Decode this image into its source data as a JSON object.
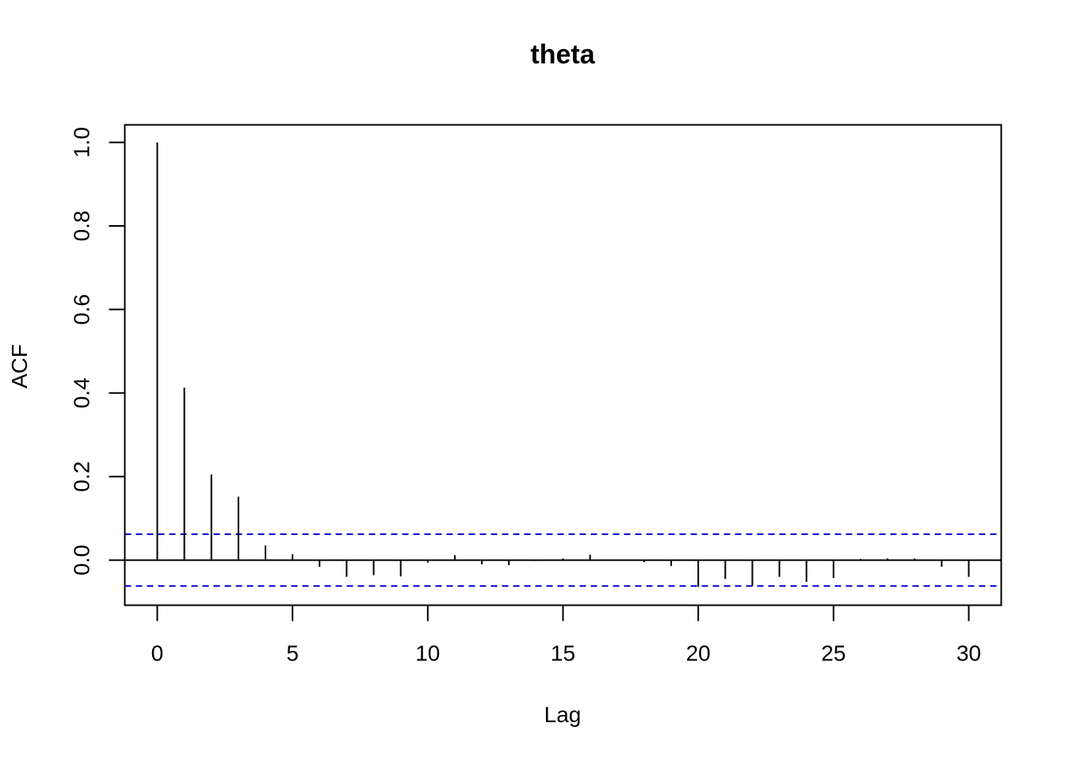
{
  "chart_data": {
    "type": "bar",
    "title": "theta",
    "xlabel": "Lag",
    "ylabel": "ACF",
    "xlim": [
      -1.2,
      31.2
    ],
    "ylim": [
      -0.108,
      1.042
    ],
    "xticks": [
      0,
      5,
      10,
      15,
      20,
      25,
      30
    ],
    "xtick_labels": [
      "0",
      "5",
      "10",
      "15",
      "20",
      "25",
      "30"
    ],
    "yticks": [
      0.0,
      0.2,
      0.4,
      0.6,
      0.8,
      1.0
    ],
    "ytick_labels": [
      "0.0",
      "0.2",
      "0.4",
      "0.6",
      "0.8",
      "1.0"
    ],
    "lags": [
      0,
      1,
      2,
      3,
      4,
      5,
      6,
      7,
      8,
      9,
      10,
      11,
      12,
      13,
      14,
      15,
      16,
      17,
      18,
      19,
      20,
      21,
      22,
      23,
      24,
      25,
      26,
      27,
      28,
      29,
      30
    ],
    "acf": [
      1.0,
      0.413,
      0.205,
      0.152,
      0.035,
      0.014,
      -0.016,
      -0.04,
      -0.036,
      -0.039,
      -0.006,
      0.012,
      -0.01,
      -0.012,
      -0.002,
      0.004,
      0.013,
      0.0,
      -0.005,
      -0.014,
      -0.064,
      -0.045,
      -0.062,
      -0.04,
      -0.052,
      -0.043,
      0.003,
      0.004,
      0.004,
      -0.016,
      -0.04
    ],
    "confidence_bound": 0.062,
    "series_color": "#000000",
    "ci_color": "#0000cc",
    "grid": false,
    "legend": "none"
  }
}
